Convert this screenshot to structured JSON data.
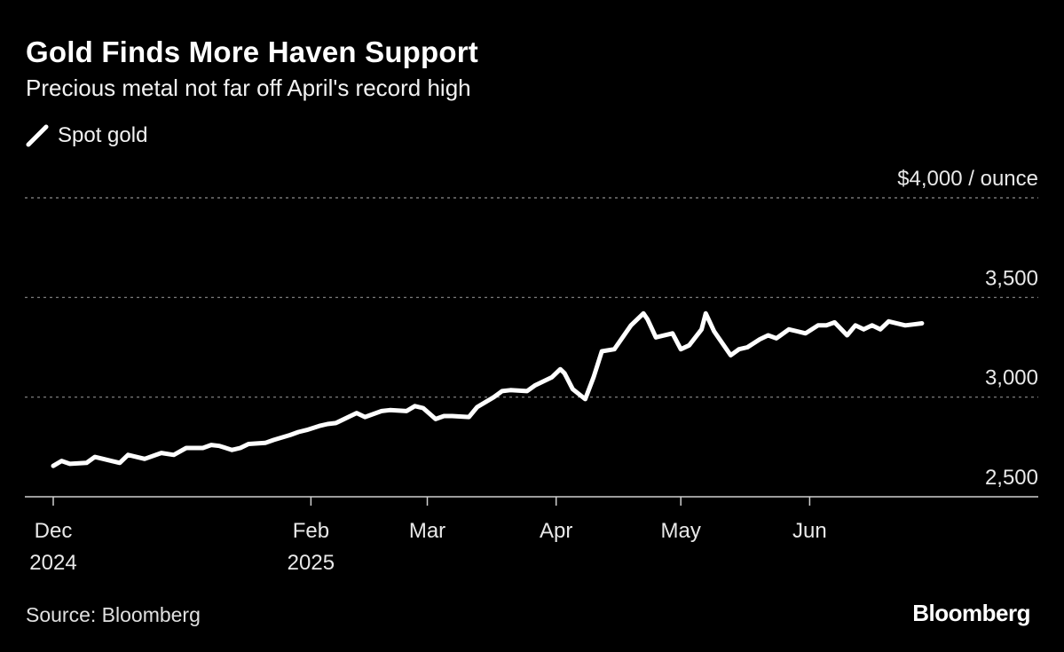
{
  "header": {
    "title": "Gold Finds More Haven Support",
    "subtitle": "Precious metal not far off April's record high"
  },
  "legend": {
    "label": "Spot gold"
  },
  "footer": {
    "source": "Source: Bloomberg",
    "brand": "Bloomberg"
  },
  "colors": {
    "background": "#000000",
    "line": "#ffffff",
    "grid": "#8c8c8c"
  },
  "chart_data": {
    "type": "line",
    "title": "Gold Finds More Haven Support",
    "subtitle": "Precious metal not far off April's record high",
    "ylabel": "$ / ounce",
    "unit_label": "$4,000 / ounce",
    "ylim": [
      2500,
      4000
    ],
    "yticks": [
      {
        "value": 2500,
        "label": "2,500"
      },
      {
        "value": 3000,
        "label": "3,000"
      },
      {
        "value": 3500,
        "label": "3,500"
      },
      {
        "value": 4000,
        "label": "$4,000 / ounce"
      }
    ],
    "xticks": [
      {
        "date": "2024-12-01",
        "label": [
          "Dec",
          "2024"
        ]
      },
      {
        "date": "2025-02-01",
        "label": [
          "Feb",
          "2025"
        ]
      },
      {
        "date": "2025-03-01",
        "label": [
          "Mar"
        ]
      },
      {
        "date": "2025-04-01",
        "label": [
          "Apr"
        ]
      },
      {
        "date": "2025-05-01",
        "label": [
          "May"
        ]
      },
      {
        "date": "2025-06-01",
        "label": [
          "Jun"
        ]
      }
    ],
    "xlim": [
      "2024-12-01",
      "2025-07-26"
    ],
    "grid": true,
    "legend_position": "top-left",
    "series": [
      {
        "name": "Spot gold",
        "color": "#ffffff",
        "x": [
          "2024-12-01",
          "2024-12-03",
          "2024-12-05",
          "2024-12-09",
          "2024-12-11",
          "2024-12-13",
          "2024-12-17",
          "2024-12-19",
          "2024-12-23",
          "2024-12-27",
          "2024-12-30",
          "2025-01-02",
          "2025-01-06",
          "2025-01-08",
          "2025-01-10",
          "2025-01-13",
          "2025-01-15",
          "2025-01-17",
          "2025-01-21",
          "2025-01-23",
          "2025-01-27",
          "2025-01-29",
          "2025-01-31",
          "2025-02-03",
          "2025-02-05",
          "2025-02-07",
          "2025-02-10",
          "2025-02-12",
          "2025-02-14",
          "2025-02-18",
          "2025-02-20",
          "2025-02-24",
          "2025-02-26",
          "2025-02-28",
          "2025-03-03",
          "2025-03-05",
          "2025-03-07",
          "2025-03-11",
          "2025-03-13",
          "2025-03-17",
          "2025-03-19",
          "2025-03-21",
          "2025-03-25",
          "2025-03-27",
          "2025-03-31",
          "2025-04-02",
          "2025-04-03",
          "2025-04-05",
          "2025-04-08",
          "2025-04-10",
          "2025-04-12",
          "2025-04-15",
          "2025-04-17",
          "2025-04-19",
          "2025-04-22",
          "2025-04-23",
          "2025-04-25",
          "2025-04-29",
          "2025-05-01",
          "2025-05-03",
          "2025-05-06",
          "2025-05-07",
          "2025-05-09",
          "2025-05-13",
          "2025-05-15",
          "2025-05-17",
          "2025-05-20",
          "2025-05-22",
          "2025-05-24",
          "2025-05-27",
          "2025-05-29",
          "2025-05-31",
          "2025-06-03",
          "2025-06-05",
          "2025-06-07",
          "2025-06-10",
          "2025-06-12",
          "2025-06-14",
          "2025-06-16",
          "2025-06-18",
          "2025-06-20",
          "2025-06-24",
          "2025-06-26",
          "2025-06-28"
        ],
        "values": [
          2655,
          2680,
          2665,
          2670,
          2700,
          2690,
          2670,
          2710,
          2690,
          2720,
          2710,
          2745,
          2745,
          2760,
          2755,
          2735,
          2745,
          2765,
          2770,
          2785,
          2810,
          2825,
          2835,
          2855,
          2865,
          2870,
          2900,
          2920,
          2900,
          2930,
          2935,
          2930,
          2955,
          2945,
          2890,
          2905,
          2905,
          2900,
          2950,
          3000,
          3030,
          3035,
          3030,
          3060,
          3100,
          3140,
          3120,
          3040,
          2990,
          3100,
          3230,
          3240,
          3300,
          3360,
          3420,
          3390,
          3300,
          3320,
          3240,
          3260,
          3340,
          3420,
          3330,
          3210,
          3240,
          3250,
          3290,
          3310,
          3295,
          3340,
          3330,
          3320,
          3360,
          3360,
          3375,
          3310,
          3360,
          3340,
          3360,
          3340,
          3380,
          3360,
          3365,
          3370
        ]
      }
    ]
  }
}
